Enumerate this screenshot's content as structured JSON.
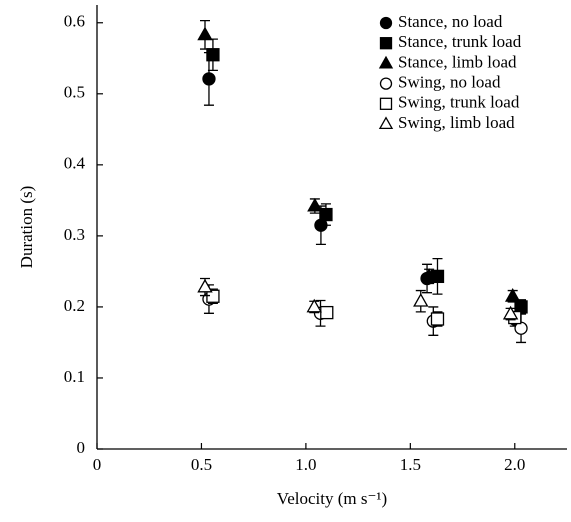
{
  "chart_data": {
    "type": "scatter",
    "xlabel": "Velocity (m s⁻¹)",
    "ylabel": "Duration (s)",
    "xlim": [
      0,
      2.25
    ],
    "ylim": [
      0,
      0.625
    ],
    "xticks": [
      0,
      0.5,
      {
        "value": 1,
        "label": "1.0"
      },
      1.5,
      {
        "value": 2,
        "label": "2.0"
      }
    ],
    "yticks": [
      0,
      0.1,
      0.2,
      0.3,
      0.4,
      0.5,
      0.6
    ],
    "legend": "upper right",
    "series": [
      {
        "name": "Stance, no load",
        "color": "#000000",
        "marker": "circle",
        "filled": true,
        "x": [
          0.536,
          1.072,
          1.58,
          2.0
        ],
        "values": [
          0.521,
          0.315,
          0.24,
          0.183
        ],
        "errors": [
          0.037,
          0.027,
          0.02,
          0.01
        ]
      },
      {
        "name": "Stance, trunk load",
        "color": "#000000",
        "marker": "square",
        "filled": true,
        "x": [
          0.555,
          1.096,
          1.63,
          2.03
        ],
        "values": [
          0.555,
          0.33,
          0.243,
          0.2
        ],
        "errors": [
          0.022,
          0.015,
          0.025,
          0.01
        ]
      },
      {
        "name": "Stance, limb load",
        "color": "#000000",
        "marker": "triangle",
        "filled": true,
        "x": [
          0.517,
          1.043,
          1.59,
          1.99
        ],
        "values": [
          0.583,
          0.342,
          0.243,
          0.215
        ],
        "errors": [
          0.02,
          0.01,
          0.01,
          0.008
        ]
      },
      {
        "name": "Swing, no load",
        "color": "#000000",
        "marker": "circle",
        "filled": false,
        "x": [
          0.536,
          1.07,
          1.61,
          2.03
        ],
        "values": [
          0.211,
          0.191,
          0.18,
          0.17
        ],
        "errors": [
          0.02,
          0.018,
          0.02,
          0.02
        ]
      },
      {
        "name": "Swing, trunk load",
        "color": "#000000",
        "marker": "square",
        "filled": false,
        "x": [
          0.555,
          1.1,
          1.63,
          2.0
        ],
        "values": [
          0.215,
          0.192,
          0.183,
          0.185
        ],
        "errors": [
          0.01,
          0.008,
          0.01,
          0.008
        ]
      },
      {
        "name": "Swing, limb load",
        "color": "#000000",
        "marker": "triangle",
        "filled": false,
        "x": [
          0.517,
          1.04,
          1.55,
          1.98
        ],
        "values": [
          0.228,
          0.2,
          0.208,
          0.19
        ],
        "errors": [
          0.012,
          0.008,
          0.015,
          0.008
        ]
      }
    ]
  }
}
